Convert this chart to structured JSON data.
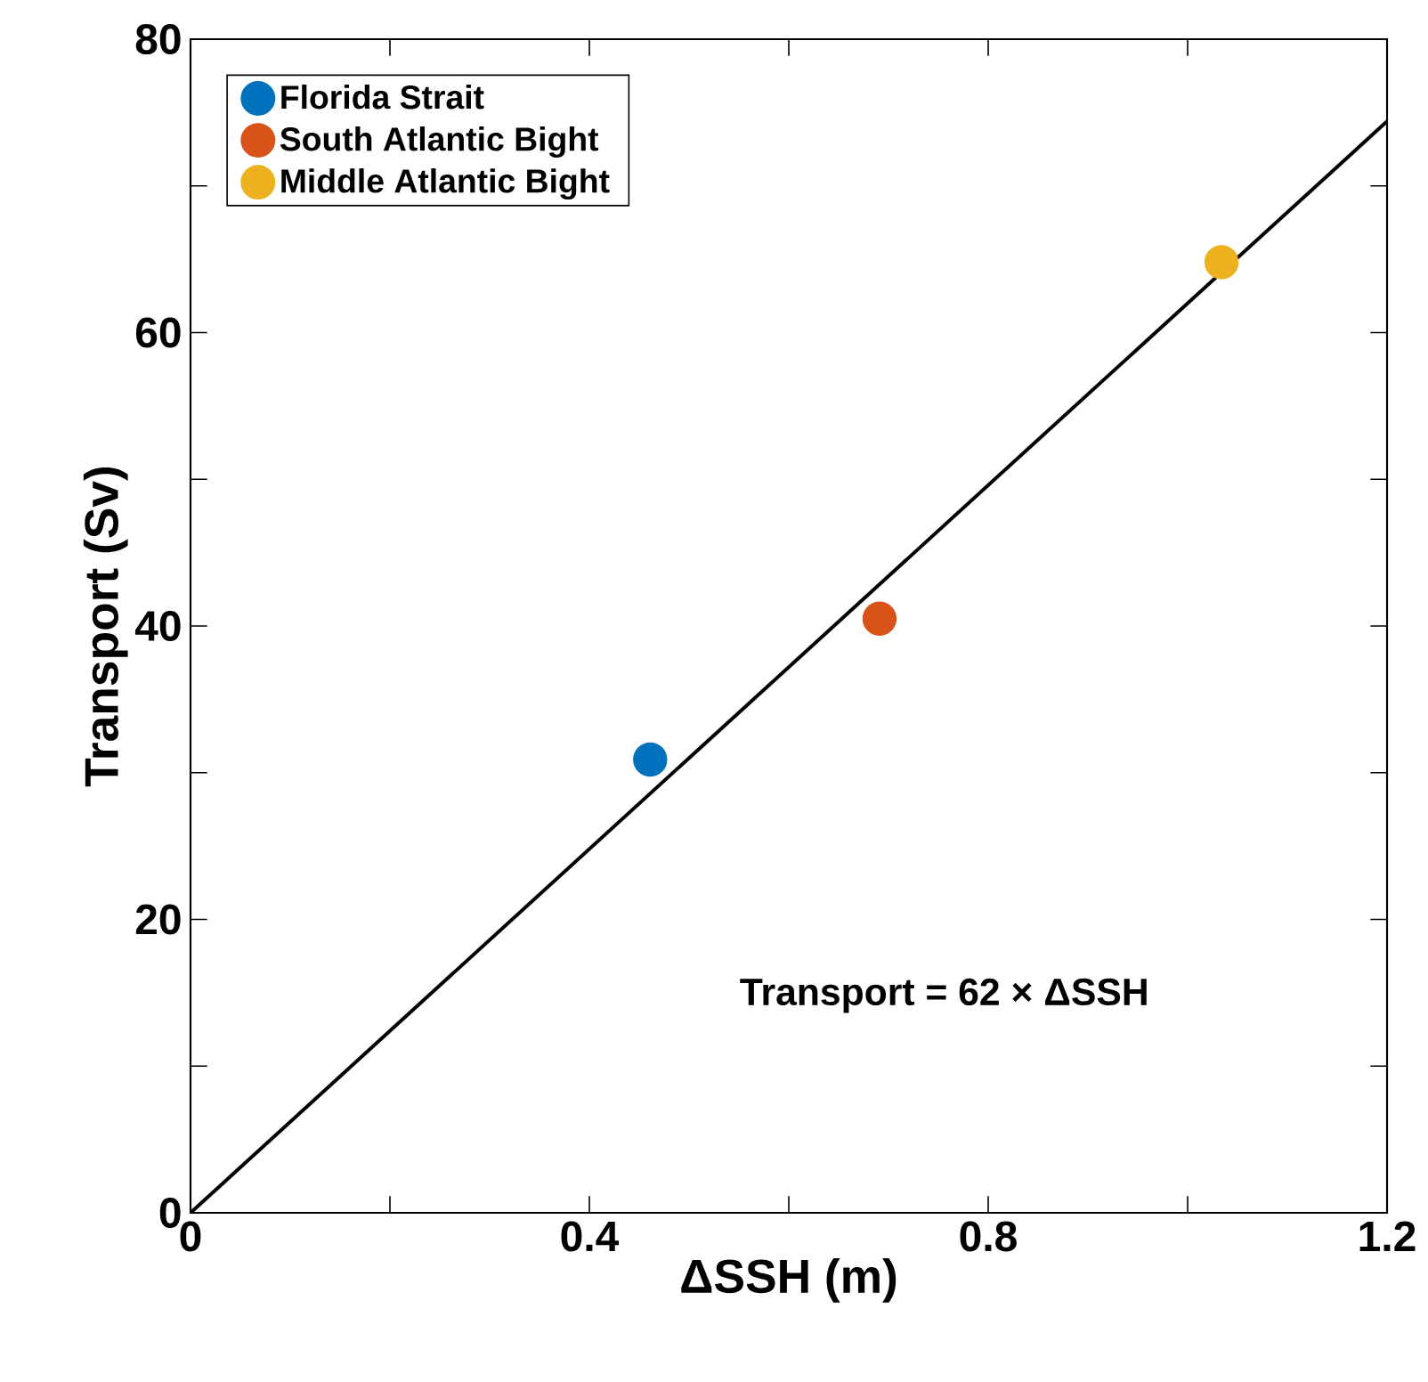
{
  "chart_data": {
    "type": "scatter",
    "xlabel": "ΔSSH (m)",
    "ylabel": "Transport (Sv)",
    "xlim": [
      0,
      1.2
    ],
    "ylim": [
      0,
      80
    ],
    "xticks": [
      0,
      {
        "value": 0.2,
        "label": null
      },
      0.4,
      {
        "value": 0.6,
        "label": null
      },
      0.8,
      {
        "value": 1.0,
        "label": null
      },
      1.2
    ],
    "yticks": [
      0,
      {
        "value": 10,
        "label": null
      },
      20,
      {
        "value": 30,
        "label": null
      },
      40,
      {
        "value": 50,
        "label": null
      },
      60,
      {
        "value": 70,
        "label": null
      },
      80
    ],
    "legend": "top left",
    "annotations": [
      "Transport = 62 × ΔSSH"
    ],
    "series": [
      {
        "name": "Florida Strait",
        "marker": "circle",
        "color": "#0072bd",
        "x": [
          0.461
        ],
        "values": [
          30.9
        ]
      },
      {
        "name": "South Atlantic Bight",
        "marker": "circle",
        "color": "#d95319",
        "x": [
          0.691
        ],
        "values": [
          40.5
        ]
      },
      {
        "name": "Middle Atlantic Bight",
        "marker": "circle",
        "color": "#edb120",
        "x": [
          1.034
        ],
        "values": [
          64.8
        ]
      },
      {
        "type": "line",
        "marker": "none",
        "color": "#000000",
        "x": [
          0,
          1.2
        ],
        "values": [
          0,
          74.4
        ]
      }
    ]
  }
}
